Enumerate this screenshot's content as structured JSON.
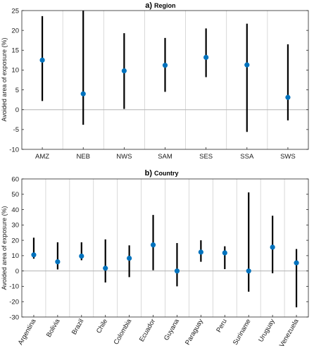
{
  "chart_data": [
    {
      "type": "scatter",
      "panel": "a)",
      "title": "Region",
      "xlabel": "",
      "ylabel": "Avoided area of exposure (%)",
      "ylim": [
        -10,
        25
      ],
      "yticks": [
        -10,
        -5,
        0,
        5,
        10,
        15,
        20,
        25
      ],
      "grid": "vertical separators",
      "categories": [
        "AMZ",
        "NEB",
        "NWS",
        "SAM",
        "SES",
        "SSA",
        "SWS"
      ],
      "values": [
        12.5,
        4.0,
        9.8,
        11.2,
        13.2,
        11.3,
        3.1
      ],
      "lower": [
        2.2,
        -3.8,
        0.2,
        4.5,
        8.2,
        -5.6,
        -2.7
      ],
      "upper": [
        23.6,
        25.0,
        19.3,
        18.1,
        20.5,
        21.7,
        16.5
      ],
      "colors": {
        "point": "#0072bd",
        "bar": "#000000",
        "zero_line": "#b3b3b3",
        "separator": "#d0d0d0"
      }
    },
    {
      "type": "scatter",
      "panel": "b)",
      "title": "Country",
      "xlabel": "",
      "ylabel": "Avoided area of exposure (%)",
      "ylim": [
        -30,
        60
      ],
      "yticks": [
        -30,
        -20,
        -10,
        0,
        10,
        20,
        30,
        40,
        50,
        60
      ],
      "grid": "vertical separators",
      "categories": [
        "Argentina",
        "Bolivia",
        "Brazil",
        "Chile",
        "Colombia",
        "Ecuador",
        "Guyana",
        "Paraguay",
        "Peru",
        "Suriname",
        "Uruguay",
        "Venezuela"
      ],
      "values": [
        10.5,
        6.0,
        9.7,
        1.8,
        8.3,
        17.0,
        0.0,
        12.3,
        11.8,
        0.0,
        15.5,
        5.3
      ],
      "lower": [
        8.0,
        1.0,
        7.0,
        -7.5,
        -4.0,
        0.5,
        -10.0,
        6.0,
        1.2,
        -13.5,
        -1.5,
        -23.7
      ],
      "upper": [
        21.7,
        18.7,
        18.7,
        20.6,
        16.7,
        36.5,
        18.2,
        20.0,
        16.1,
        51.2,
        36.0,
        14.3
      ],
      "colors": {
        "point": "#0072bd",
        "bar": "#000000",
        "zero_line": "#b3b3b3",
        "separator": "#d0d0d0"
      }
    }
  ]
}
